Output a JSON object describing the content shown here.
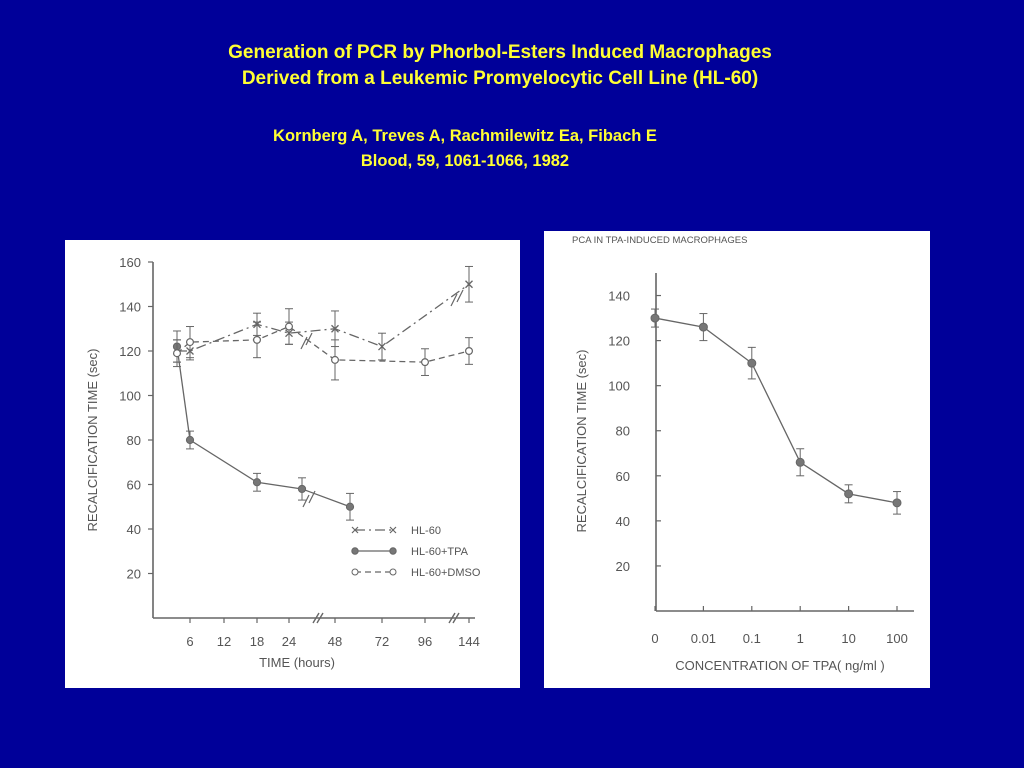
{
  "slide": {
    "title_line1": "Generation of PCR by Phorbol-Esters Induced Macrophages",
    "title_line2": "Derived from a Leukemic Promyelocytic Cell Line (HL-60)",
    "authors": "Kornberg A, Treves A, Rachmilewitz Ea, Fibach E",
    "reference": "Blood, 59, 1061-1066, 1982"
  },
  "chart_data": [
    {
      "type": "line",
      "title": "",
      "xlabel": "TIME (hours)",
      "ylabel": "RECALCIFICATION  TIME (sec)",
      "categories": [
        "0",
        "6",
        "12",
        "18",
        "24",
        "30",
        "48",
        "60",
        "72",
        "96",
        "144"
      ],
      "x_tick_labels": [
        "6",
        "12",
        "18",
        "24",
        "48",
        "72",
        "96",
        "144"
      ],
      "y_ticks": [
        20,
        40,
        60,
        80,
        100,
        120,
        140,
        160
      ],
      "ylim": [
        0,
        160
      ],
      "legend_position": "bottom-right",
      "series": [
        {
          "name": "HL-60",
          "style": "x-dash-dot",
          "points": [
            {
              "x": "0",
              "y": 120,
              "err": 5
            },
            {
              "x": "6",
              "y": 120,
              "err": 4
            },
            {
              "x": "18",
              "y": 132,
              "err": 5
            },
            {
              "x": "24",
              "y": 128,
              "err": 5
            },
            {
              "x": "48",
              "y": 130,
              "err": 8
            },
            {
              "x": "72",
              "y": 122,
              "err": 6
            },
            {
              "x": "144",
              "y": 150,
              "err": 8
            }
          ]
        },
        {
          "name": "HL-60+TPA",
          "style": "filled-solid",
          "points": [
            {
              "x": "0",
              "y": 122,
              "err": 7
            },
            {
              "x": "6",
              "y": 80,
              "err": 4
            },
            {
              "x": "18",
              "y": 61,
              "err": 4
            },
            {
              "x": "30",
              "y": 58,
              "err": 5
            },
            {
              "x": "60",
              "y": 50,
              "err": 6
            }
          ]
        },
        {
          "name": "HL-60+DMSO",
          "style": "open-dashed",
          "points": [
            {
              "x": "0",
              "y": 119,
              "err": 6
            },
            {
              "x": "6",
              "y": 124,
              "err": 7
            },
            {
              "x": "18",
              "y": 125,
              "err": 8
            },
            {
              "x": "24",
              "y": 131,
              "err": 8
            },
            {
              "x": "48",
              "y": 116,
              "err": 9
            },
            {
              "x": "96",
              "y": 115,
              "err": 6
            },
            {
              "x": "144",
              "y": 120,
              "err": 6
            }
          ]
        }
      ]
    },
    {
      "type": "line",
      "title": "PCA  IN  TPA-INDUCED  MACROPHAGES",
      "xlabel": "CONCENTRATION  OF  TPA( ng/ml )",
      "ylabel": "RECALCIFICATION  TIME (sec)",
      "categories": [
        "0",
        "0.01",
        "0.1",
        "1",
        "10",
        "100"
      ],
      "y_ticks": [
        20,
        40,
        60,
        80,
        100,
        120,
        140
      ],
      "ylim": [
        0,
        150
      ],
      "series": [
        {
          "style": "filled-solid",
          "points": [
            {
              "x": "0",
              "y": 130,
              "err": 4
            },
            {
              "x": "0.01",
              "y": 126,
              "err": 6
            },
            {
              "x": "0.1",
              "y": 110,
              "err": 7
            },
            {
              "x": "1",
              "y": 66,
              "err": 6
            },
            {
              "x": "10",
              "y": 52,
              "err": 4
            },
            {
              "x": "100",
              "y": 48,
              "err": 5
            }
          ]
        }
      ]
    }
  ]
}
